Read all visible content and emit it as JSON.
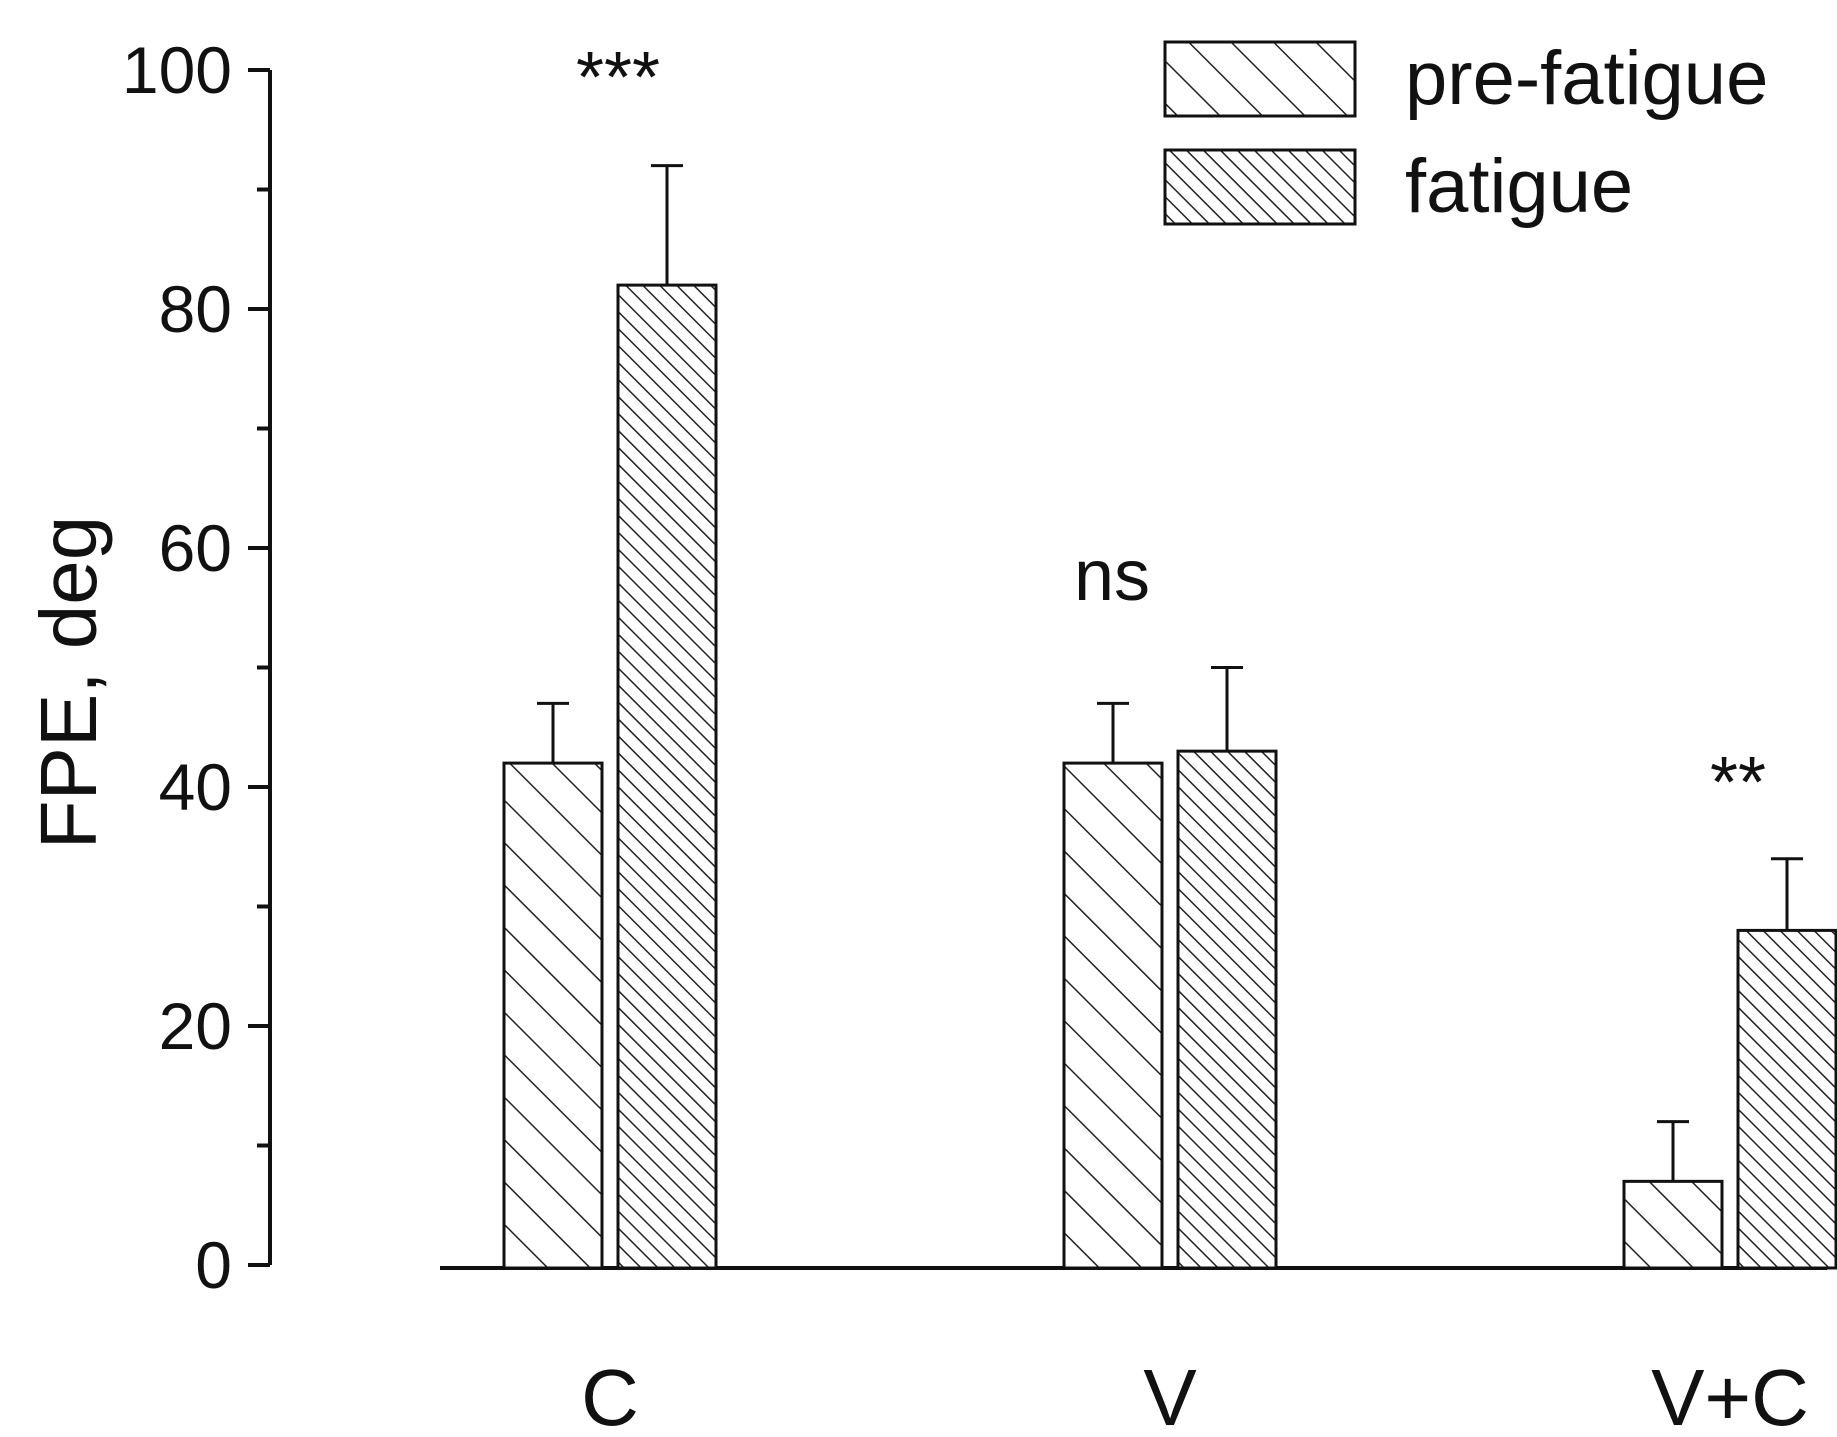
{
  "chart_data": {
    "type": "bar",
    "title": "",
    "xlabel": "",
    "ylabel": "FPE, deg",
    "ylim": [
      0,
      100
    ],
    "yticks": [
      0,
      20,
      40,
      60,
      80,
      100
    ],
    "categories": [
      "C",
      "V",
      "V+C"
    ],
    "series": [
      {
        "name": "pre-fatigue",
        "values": [
          42,
          42,
          7
        ],
        "errors": [
          5,
          5,
          5
        ],
        "pattern": "sparse-hatch"
      },
      {
        "name": "fatigue",
        "values": [
          82,
          43,
          28
        ],
        "errors": [
          10,
          7,
          6
        ],
        "pattern": "dense-hatch"
      }
    ],
    "annotations": [
      "***",
      "ns",
      "**"
    ],
    "legend_position": "top-right",
    "colors": {
      "stroke": "#111111",
      "fill": "#ffffff"
    }
  }
}
